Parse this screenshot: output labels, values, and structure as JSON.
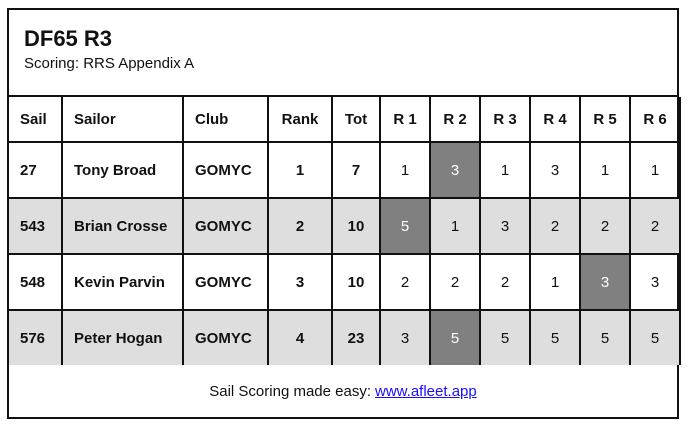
{
  "title": "DF65 R3",
  "subtitle": "Scoring: RRS Appendix A",
  "columns": [
    "Sail",
    "Sailor",
    "Club",
    "Rank",
    "Tot",
    "R 1",
    "R 2",
    "R 3",
    "R 4",
    "R 5",
    "R 6"
  ],
  "rows": [
    {
      "sail": "27",
      "sailor": "Tony Broad",
      "club": "GOMYC",
      "rank": "1",
      "tot": "7",
      "races": [
        "1",
        "3",
        "1",
        "3",
        "1",
        "1"
      ],
      "discarded": [
        1
      ]
    },
    {
      "sail": "543",
      "sailor": "Brian Crosse",
      "club": "GOMYC",
      "rank": "2",
      "tot": "10",
      "races": [
        "5",
        "1",
        "3",
        "2",
        "2",
        "2"
      ],
      "discarded": [
        0
      ]
    },
    {
      "sail": "548",
      "sailor": "Kevin Parvin",
      "club": "GOMYC",
      "rank": "3",
      "tot": "10",
      "races": [
        "2",
        "2",
        "2",
        "1",
        "3",
        "3"
      ],
      "discarded": [
        4
      ]
    },
    {
      "sail": "576",
      "sailor": "Peter Hogan",
      "club": "GOMYC",
      "rank": "4",
      "tot": "23",
      "races": [
        "3",
        "5",
        "5",
        "5",
        "5",
        "5"
      ],
      "discarded": [
        1
      ]
    }
  ],
  "footer": {
    "text": "Sail Scoring made easy:",
    "link": "www.afleet.app"
  },
  "colors": {
    "discard_bg": "#808080",
    "alt_row_bg": "#dedede",
    "link": "#1a0dff"
  }
}
